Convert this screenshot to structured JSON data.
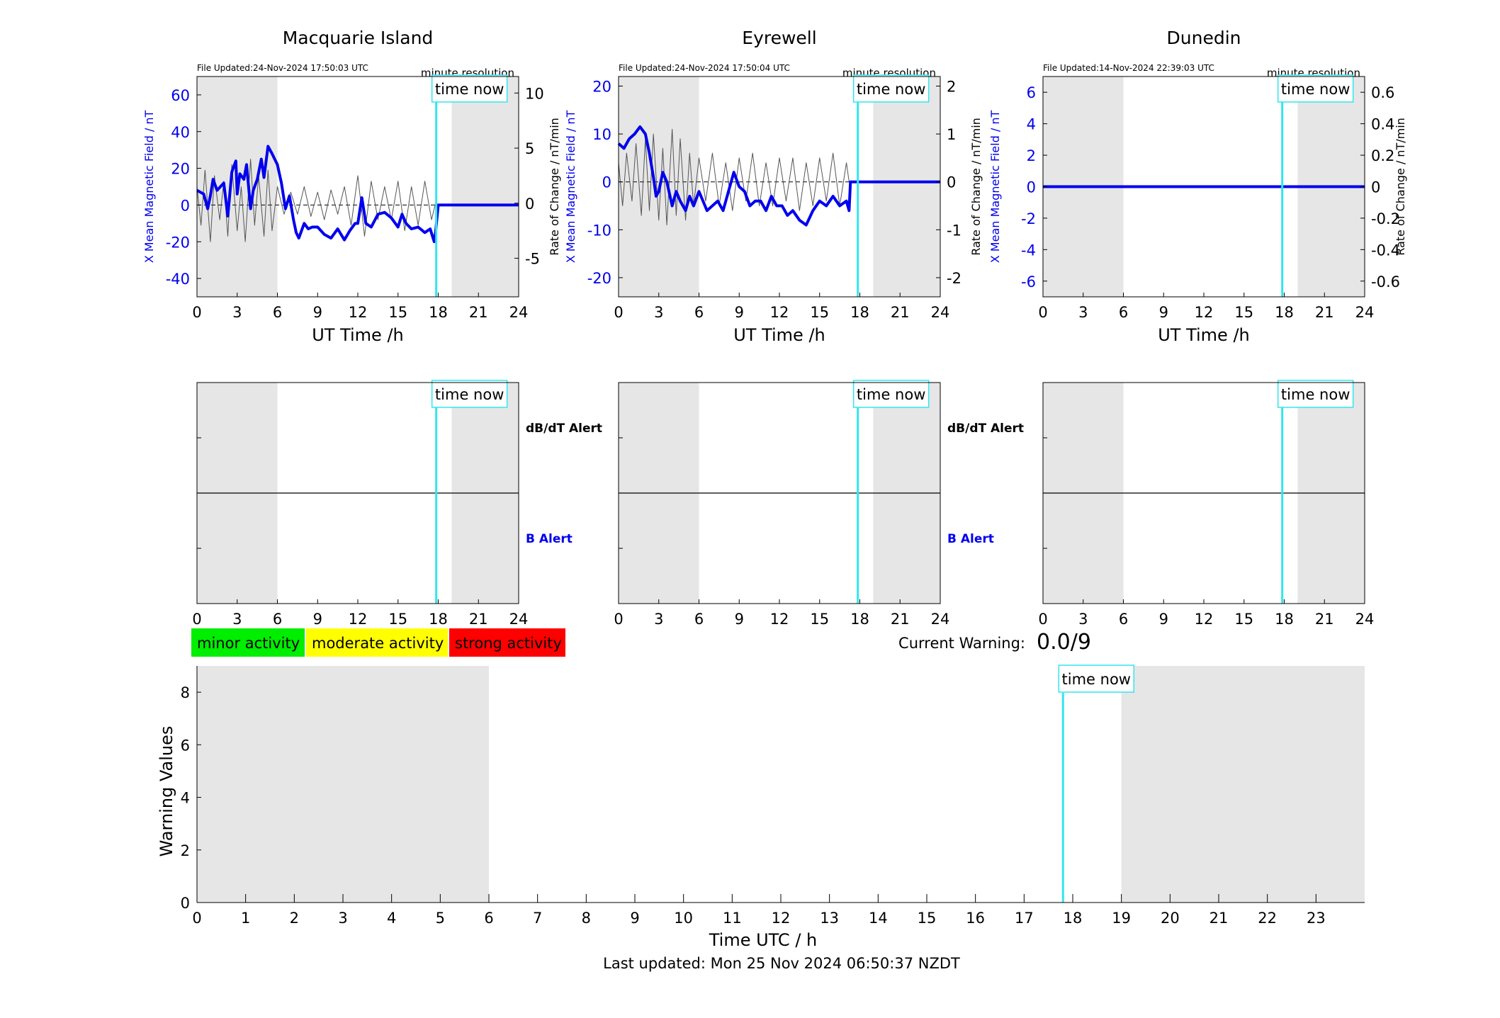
{
  "colors": {
    "shade": "#e6e6e6",
    "blue": "#0000ee",
    "cyan": "#33e5ee",
    "minor": "#00ee00",
    "moderate": "#ffff00",
    "strong": "#ff0000"
  },
  "labels": {
    "time_now": "time now",
    "minute_resolution": "minute resolution",
    "x_axis": "UT Time /h",
    "y_left": "X Mean Magnetic Field / nT",
    "y_right": "Rate of Change / nT/min",
    "dbdt_alert": "dB/dT Alert",
    "b_alert": "B Alert",
    "current_warning_label": "Current Warning:",
    "current_warning_value": "0.0/9",
    "warning_y_axis": "Warning Values",
    "warning_x_axis": "Time UTC / h",
    "last_updated": "Last updated: Mon 25 Nov 2024 06:50:37 NZDT"
  },
  "legend": [
    {
      "label": "minor activity",
      "color": "#00ee00"
    },
    {
      "label": "moderate activity",
      "color": "#ffff00"
    },
    {
      "label": "strong activity",
      "color": "#ff0000"
    }
  ],
  "chart_data": [
    {
      "type": "line",
      "title": "Macquarie Island",
      "file_updated": "File Updated:24-Nov-2024 17:50:03 UTC",
      "xlabel": "UT Time /h",
      "xlim": [
        0,
        24
      ],
      "xticks": [
        "0",
        "3",
        "6",
        "9",
        "12",
        "15",
        "18",
        "21",
        "24"
      ],
      "ylim_left": [
        -50,
        70
      ],
      "yticks_left": [
        "-40",
        "-20",
        "0",
        "20",
        "40",
        "60"
      ],
      "ylim_right": [
        -8.5,
        11.5
      ],
      "yticks_right": [
        "-5",
        "0",
        "5",
        "10"
      ],
      "shaded_hours": [
        [
          0,
          6
        ],
        [
          19,
          24
        ]
      ],
      "time_now_hour": 17.85,
      "data_end_hour": 17.8,
      "series": [
        {
          "color": "#0000ee",
          "x": [
            0,
            0.5,
            0.8,
            1,
            1.2,
            1.5,
            2,
            2.3,
            2.6,
            2.9,
            3,
            3.2,
            3.5,
            3.7,
            4,
            4.2,
            4.5,
            4.8,
            5,
            5.3,
            5.6,
            6,
            6.3,
            6.6,
            6.9,
            7.2,
            7.4,
            7.6,
            8,
            8.3,
            8.6,
            9,
            9.5,
            10,
            10.5,
            11,
            11.4,
            11.8,
            12,
            12.3,
            12.6,
            13,
            13.5,
            14,
            14.5,
            15,
            15.3,
            15.6,
            16,
            16.5,
            17,
            17.4,
            17.7,
            17.8,
            18,
            24
          ],
          "y": [
            8,
            6,
            -2,
            5,
            14,
            8,
            12,
            -6,
            18,
            24,
            6,
            17,
            14,
            22,
            -2,
            8,
            14,
            25,
            15,
            32,
            28,
            22,
            12,
            -2,
            5,
            -8,
            -15,
            -18,
            -10,
            -13,
            -12,
            -12,
            -16,
            -18,
            -13,
            -19,
            -14,
            -10,
            -10,
            4,
            -10,
            -12,
            -5,
            -4,
            -7,
            -12,
            -5,
            -10,
            -13,
            -12,
            -15,
            -13,
            -20,
            -15,
            0,
            0
          ]
        },
        {
          "color": "#555555",
          "x": [
            0,
            0.3,
            0.6,
            1,
            1.3,
            1.7,
            2,
            2.3,
            2.6,
            3,
            3.3,
            3.6,
            4,
            4.3,
            4.6,
            5,
            5.3,
            5.6,
            6,
            6.5,
            7,
            7.5,
            8,
            8.5,
            9,
            9.5,
            10,
            10.5,
            11,
            11.5,
            12,
            12.5,
            13,
            13.5,
            14,
            14.5,
            15,
            15.5,
            16,
            16.5,
            17,
            17.5,
            17.8
          ],
          "y": [
            1.5,
            -2,
            3,
            -3.5,
            2.5,
            -1.5,
            2,
            -3,
            3.5,
            -2.5,
            1.5,
            -3.5,
            4,
            -2,
            2.5,
            -3,
            3,
            -2.5,
            1.5,
            -1,
            1,
            -1,
            1.5,
            -1.2,
            1,
            -1.5,
            1.2,
            -1,
            1.5,
            -2,
            2.5,
            -3,
            2,
            -1.5,
            1.5,
            -1.5,
            2,
            -2.5,
            1.5,
            -2,
            2,
            -1.5,
            0
          ]
        }
      ]
    },
    {
      "type": "line",
      "title": "Eyrewell",
      "file_updated": "File Updated:24-Nov-2024 17:50:04 UTC",
      "xlabel": "UT Time /h",
      "xlim": [
        0,
        24
      ],
      "xticks": [
        "0",
        "3",
        "6",
        "9",
        "12",
        "15",
        "18",
        "21",
        "24"
      ],
      "ylim_left": [
        -24,
        22
      ],
      "yticks_left": [
        "-20",
        "-10",
        "0",
        "10",
        "20"
      ],
      "ylim_right": [
        -2.4,
        2.2
      ],
      "yticks_right": [
        "-2",
        "-1",
        "0",
        "1",
        "2"
      ],
      "shaded_hours": [
        [
          0,
          6
        ],
        [
          19,
          24
        ]
      ],
      "time_now_hour": 17.85,
      "data_end_hour": 17.2,
      "series": [
        {
          "color": "#0000ee",
          "x": [
            0,
            0.4,
            0.8,
            1.2,
            1.6,
            2,
            2.3,
            2.6,
            2.8,
            3,
            3.3,
            3.6,
            4,
            4.3,
            4.6,
            5,
            5.3,
            5.6,
            6,
            6.3,
            6.6,
            7,
            7.4,
            7.8,
            8.2,
            8.6,
            9,
            9.4,
            9.8,
            10.2,
            10.6,
            11,
            11.4,
            11.8,
            12.2,
            12.6,
            13,
            13.5,
            14,
            14.5,
            15,
            15.5,
            16,
            16.5,
            17,
            17.2,
            17.3,
            24
          ],
          "y": [
            8,
            7,
            9,
            10,
            11.5,
            10,
            6,
            1,
            -3,
            -2,
            2,
            0,
            -5,
            -2,
            -4,
            -6,
            -3,
            -5,
            -2,
            -4,
            -6,
            -5,
            -4,
            -6,
            -2,
            2,
            -1,
            -2,
            -5,
            -4,
            -4,
            -6,
            -3,
            -5,
            -5,
            -7,
            -6,
            -8,
            -9,
            -6,
            -4,
            -5,
            -3,
            -5,
            -4,
            -6,
            0,
            0
          ]
        },
        {
          "color": "#555555",
          "x": [
            0,
            0.3,
            0.6,
            1,
            1.3,
            1.7,
            2,
            2.3,
            2.6,
            3,
            3.3,
            3.6,
            4,
            4.3,
            4.6,
            5,
            5.3,
            5.6,
            6,
            6.5,
            7,
            7.5,
            8,
            8.5,
            9,
            9.5,
            10,
            10.5,
            11,
            11.5,
            12,
            12.5,
            13,
            13.5,
            14,
            14.5,
            15,
            15.5,
            16,
            16.5,
            17,
            17.2
          ],
          "y": [
            0.4,
            -0.5,
            0.6,
            -0.4,
            0.8,
            -0.7,
            0.9,
            -0.6,
            1,
            -0.8,
            0.7,
            -0.9,
            1.1,
            -0.7,
            0.9,
            -0.8,
            0.6,
            -0.5,
            0.5,
            -0.4,
            0.6,
            -0.5,
            0.4,
            -0.6,
            0.5,
            -0.4,
            0.6,
            -0.5,
            0.4,
            -0.5,
            0.5,
            -0.4,
            0.5,
            -0.6,
            0.4,
            -0.5,
            0.5,
            -0.4,
            0.6,
            -0.5,
            0.4,
            0
          ]
        }
      ]
    },
    {
      "type": "line",
      "title": "Dunedin",
      "file_updated": "File Updated:14-Nov-2024 22:39:03 UTC",
      "xlabel": "UT Time /h",
      "xlim": [
        0,
        24
      ],
      "xticks": [
        "0",
        "3",
        "6",
        "9",
        "12",
        "15",
        "18",
        "21",
        "24"
      ],
      "ylim_left": [
        -7,
        7
      ],
      "yticks_left": [
        "-6",
        "-4",
        "-2",
        "0",
        "2",
        "4",
        "6"
      ],
      "ylim_right": [
        -0.7,
        0.7
      ],
      "yticks_right": [
        "-0.6",
        "-0.4",
        "-0.2",
        "0",
        "0.2",
        "0.4",
        "0.6"
      ],
      "shaded_hours": [
        [
          0,
          6
        ],
        [
          19,
          24
        ]
      ],
      "time_now_hour": 17.85,
      "data_end_hour": 24,
      "series": [
        {
          "color": "#0000ee",
          "x": [
            0,
            24
          ],
          "y": [
            0,
            0
          ]
        }
      ]
    },
    {
      "type": "line",
      "xlabel": "Time UTC / h",
      "ylabel": "Warning Values",
      "xlim": [
        0,
        24
      ],
      "ylim": [
        0,
        9
      ],
      "xticks": [
        "0",
        "1",
        "2",
        "3",
        "4",
        "5",
        "6",
        "7",
        "8",
        "9",
        "10",
        "11",
        "12",
        "13",
        "14",
        "15",
        "16",
        "17",
        "18",
        "19",
        "20",
        "21",
        "22",
        "23"
      ],
      "yticks": [
        "0",
        "2",
        "4",
        "6",
        "8"
      ],
      "shaded_hours": [
        [
          0,
          6
        ],
        [
          19,
          24
        ]
      ],
      "time_now_hour": 17.8
    }
  ]
}
